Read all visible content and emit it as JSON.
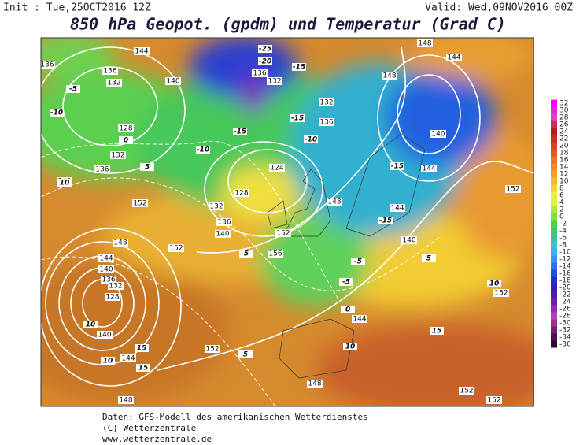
{
  "header": {
    "init": "Init : Tue,25OCT2016 12Z",
    "valid": "Valid: Wed,09NOV2016 00Z",
    "title": "850 hPa Geopot. (gpdm) und Temperatur (Grad C)"
  },
  "colorbar": {
    "labels": [
      "32",
      "30",
      "28",
      "26",
      "24",
      "22",
      "20",
      "18",
      "16",
      "14",
      "12",
      "10",
      "8",
      "6",
      "4",
      "2",
      "0",
      "-2",
      "-4",
      "-6",
      "-8",
      "-10",
      "-12",
      "-14",
      "-16",
      "-18",
      "-20",
      "-22",
      "-24",
      "-26",
      "-28",
      "-30",
      "-32",
      "-34",
      "-36"
    ]
  },
  "geopotential_labels": [
    "144",
    "136",
    "136",
    "132",
    "140",
    "128",
    "132",
    "136",
    "140",
    "152",
    "148",
    "144",
    "140",
    "136",
    "132",
    "128",
    "140",
    "144",
    "148",
    "152",
    "152",
    "156",
    "152",
    "148",
    "144",
    "140",
    "144",
    "148",
    "152",
    "152",
    "152",
    "152",
    "144",
    "140",
    "144",
    "148",
    "148",
    "136",
    "132",
    "136",
    "132",
    "124",
    "128",
    "132",
    "136",
    "140"
  ],
  "temperature_labels": [
    "-5",
    "-10",
    "0",
    "5",
    "10",
    "-25",
    "-20",
    "-15",
    "-15",
    "-10",
    "-15",
    "-10",
    "10",
    "15",
    "15",
    "10",
    "5",
    "-5",
    "-5",
    "-15",
    "-15",
    "5",
    "10",
    "15",
    "10",
    "5",
    "0"
  ],
  "footer": {
    "line1": "Daten: GFS-Modell des amerikanischen Wetterdienstes",
    "line2": "(C) Wetterzentrale",
    "line3": "www.wetterzentrale.de"
  }
}
